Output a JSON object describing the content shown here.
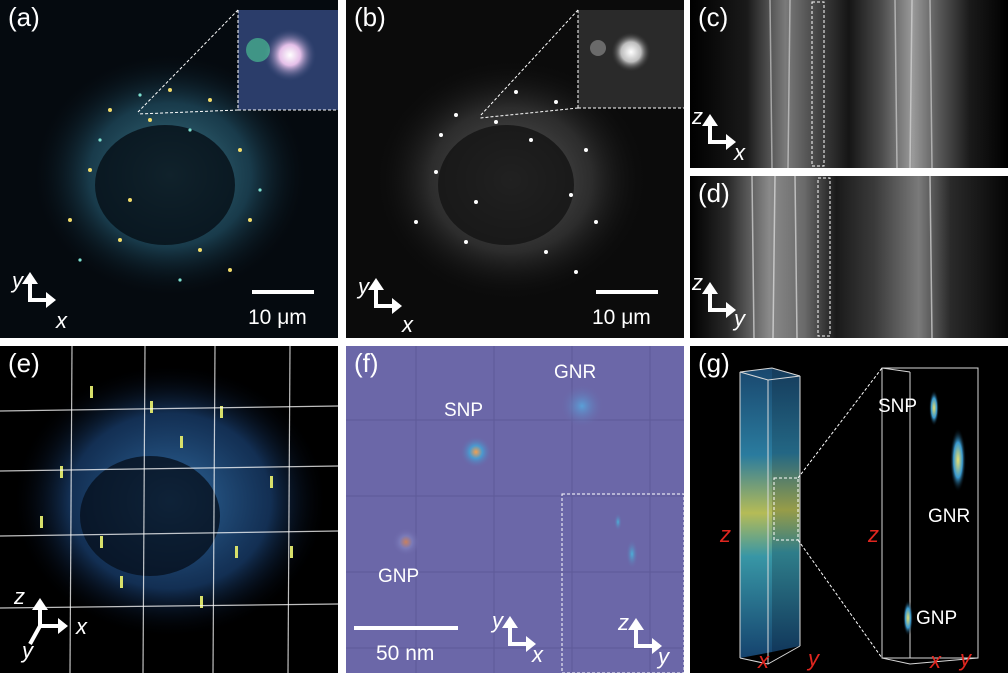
{
  "panels": {
    "a": {
      "label": "(a)",
      "scale": "10 μm",
      "axis_v": "y",
      "axis_h": "x"
    },
    "b": {
      "label": "(b)",
      "scale": "10 μm",
      "axis_v": "y",
      "axis_h": "x"
    },
    "c": {
      "label": "(c)",
      "axis_v": "z",
      "axis_h": "x"
    },
    "d": {
      "label": "(d)",
      "axis_v": "z",
      "axis_h": "y"
    },
    "e": {
      "label": "(e)",
      "axis_v1": "z",
      "axis_h": "x",
      "axis_v2": "y"
    },
    "f": {
      "label": "(f)",
      "scale": "50 nm",
      "axis_v": "y",
      "axis_h": "x",
      "inset_axis_v": "z",
      "inset_axis_h": "y",
      "particles": {
        "gnr": "GNR",
        "snp": "SNP",
        "gnp": "GNP"
      }
    },
    "g": {
      "label": "(g)",
      "z_left": "z",
      "x_left": "x",
      "y_left": "y",
      "z_right": "z",
      "x_right": "x",
      "y_right": "y",
      "particles": {
        "snp": "SNP",
        "gnr": "GNR",
        "gnp": "GNP"
      }
    }
  },
  "colors": {
    "background": "#000000",
    "panel_f_bg": "#6b67a8",
    "accent_red": "#e0261f"
  }
}
